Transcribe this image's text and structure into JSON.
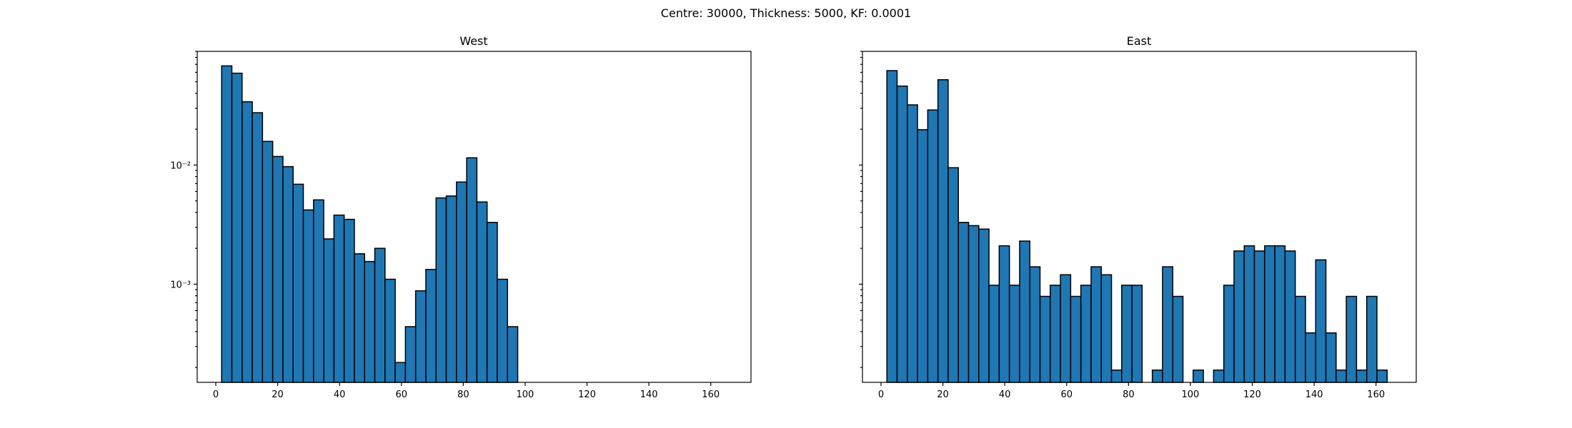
{
  "suptitle": "Centre: 30000, Thickness: 5000, KF: 0.0001",
  "chart_data": [
    {
      "type": "bar",
      "title": "West",
      "xlabel": "",
      "ylabel": "",
      "yscale": "log",
      "xlim": [
        -6,
        173
      ],
      "ylim": [
        0.00015,
        0.09
      ],
      "xticks": [
        0,
        20,
        40,
        60,
        80,
        100,
        120,
        140,
        160
      ],
      "xtick_labels": [
        "0",
        "20",
        "40",
        "60",
        "80",
        "100",
        "120",
        "140",
        "160"
      ],
      "yticks": [
        0.01,
        0.001
      ],
      "ytick_labels": [
        "10⁻²",
        "10⁻³"
      ],
      "bin_width": 3.3,
      "bin_edges_start": 1.9,
      "values": [
        0.068,
        0.059,
        0.034,
        0.0275,
        0.0158,
        0.0118,
        0.0097,
        0.0069,
        0.0042,
        0.0051,
        0.0024,
        0.0038,
        0.0035,
        0.0018,
        0.00155,
        0.002,
        0.0011,
        0.00022,
        0.00044,
        0.00088,
        0.00133,
        0.0053,
        0.0055,
        0.0072,
        0.0115,
        0.0049,
        0.0033,
        0.0011,
        0.00044
      ]
    },
    {
      "type": "bar",
      "title": "East",
      "xlabel": "",
      "ylabel": "",
      "yscale": "log",
      "xlim": [
        -6,
        173
      ],
      "ylim": [
        0.00015,
        0.09
      ],
      "xticks": [
        0,
        20,
        40,
        60,
        80,
        100,
        120,
        140,
        160
      ],
      "xtick_labels": [
        "0",
        "20",
        "40",
        "60",
        "80",
        "100",
        "120",
        "140",
        "160"
      ],
      "bin_width": 3.3,
      "bin_edges_start": 1.9,
      "values": [
        0.062,
        0.046,
        0.032,
        0.0198,
        0.029,
        0.052,
        0.0095,
        0.0033,
        0.0031,
        0.0029,
        0.00098,
        0.0021,
        0.00098,
        0.0023,
        0.0014,
        0.00079,
        0.00098,
        0.0012,
        0.00079,
        0.00098,
        0.0014,
        0.0012,
        0.00019,
        0.00098,
        0.00098,
        0,
        0.00019,
        0.0014,
        0.00079,
        0,
        0.00019,
        0,
        0.00019,
        0.00098,
        0.0019,
        0.0021,
        0.0019,
        0.0021,
        0.0021,
        0.0019,
        0.00079,
        0.00039,
        0.0016,
        0.00039,
        0.00019,
        0.00079,
        0.00019,
        0.00079,
        0.00019
      ]
    }
  ]
}
